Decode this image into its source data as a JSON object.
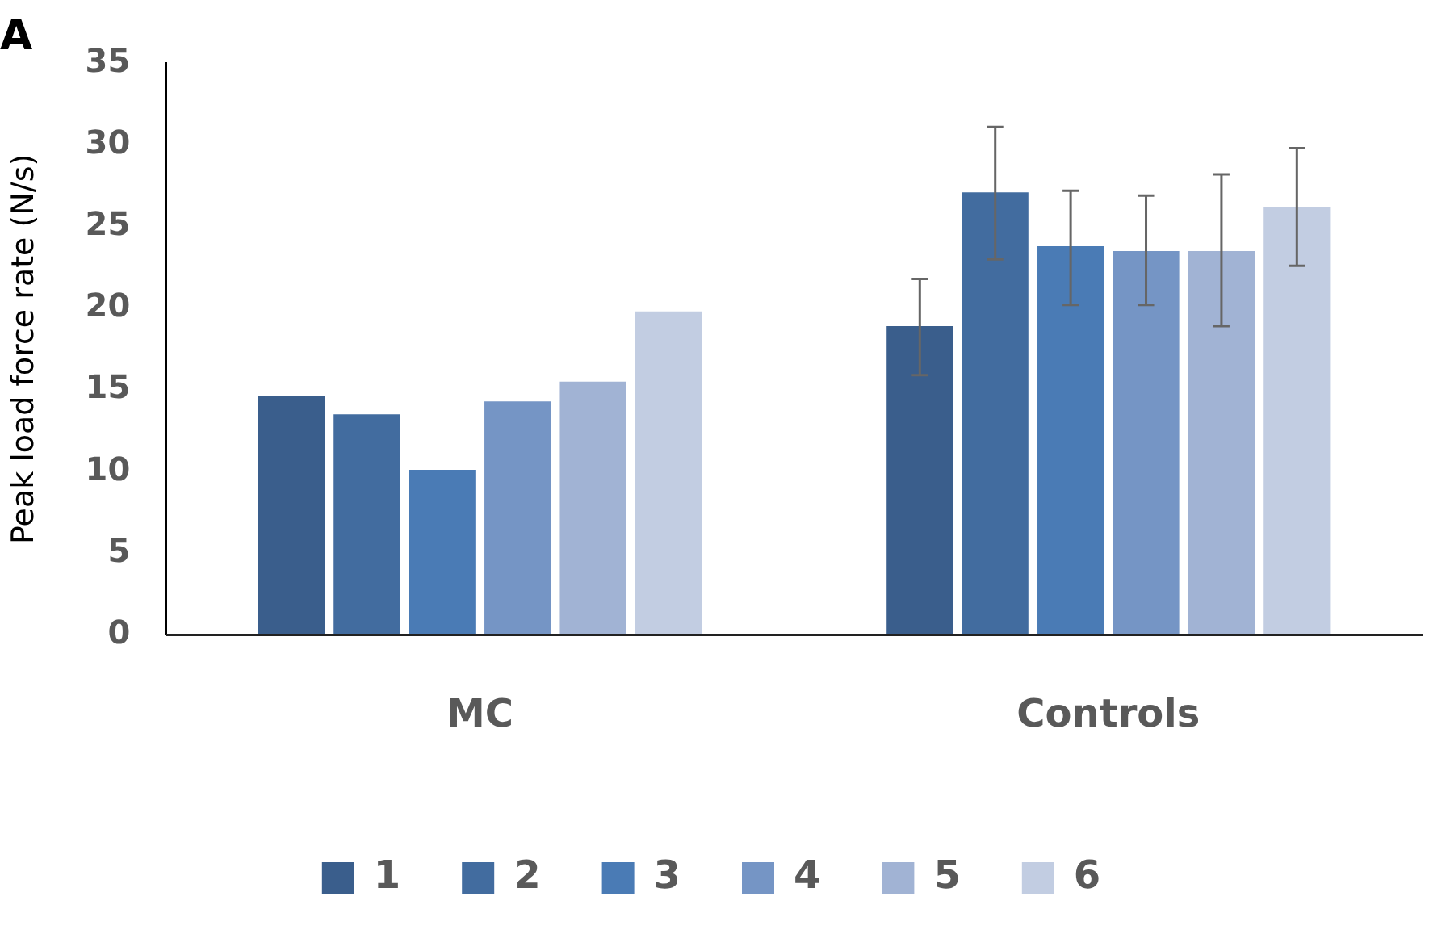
{
  "chart_data": {
    "type": "bar",
    "title": "A",
    "ylabel": "Peak load force rate (N/s)",
    "categories": [
      "MC",
      "Controls"
    ],
    "ylim": [
      0,
      35
    ],
    "yticks": [
      0,
      5,
      10,
      15,
      20,
      25,
      30,
      35
    ],
    "grid": false,
    "legend": "bottom",
    "series": [
      {
        "name": "1",
        "color": "#3a5e8c",
        "values": [
          14.6,
          18.9
        ],
        "errors": [
          null,
          [
            15.9,
            21.8
          ]
        ]
      },
      {
        "name": "2",
        "color": "#426c9f",
        "values": [
          13.5,
          27.1
        ],
        "errors": [
          null,
          [
            23.0,
            31.1
          ]
        ]
      },
      {
        "name": "3",
        "color": "#4a7bb5",
        "values": [
          10.1,
          23.8
        ],
        "errors": [
          null,
          [
            20.2,
            27.2
          ]
        ]
      },
      {
        "name": "4",
        "color": "#7595c5",
        "values": [
          14.3,
          23.5
        ],
        "errors": [
          null,
          [
            20.2,
            26.9
          ]
        ]
      },
      {
        "name": "5",
        "color": "#a1b3d4",
        "values": [
          15.5,
          23.5
        ],
        "errors": [
          null,
          [
            18.9,
            28.2
          ]
        ]
      },
      {
        "name": "6",
        "color": "#c2cde2",
        "values": [
          19.8,
          26.2
        ],
        "errors": [
          null,
          [
            22.6,
            29.8
          ]
        ]
      }
    ]
  }
}
